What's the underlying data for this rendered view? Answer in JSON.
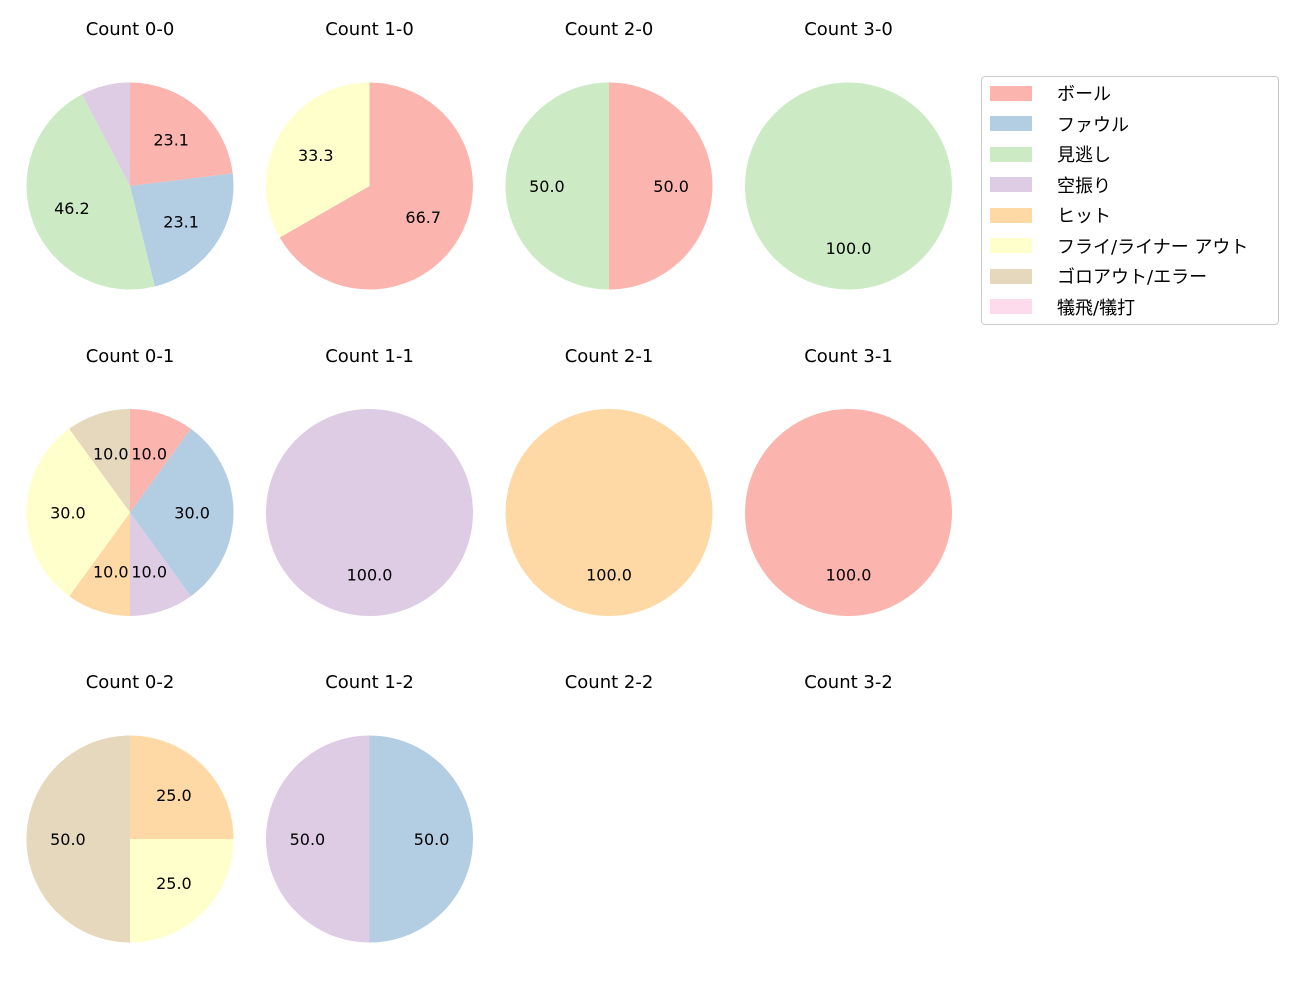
{
  "chart_data": {
    "type": "pie",
    "layout": {
      "rows": 3,
      "cols": 4,
      "start_angle": 90,
      "direction": "clockwise",
      "legend_position": "upper right"
    },
    "categories": [
      "ボール",
      "ファウル",
      "見逃し",
      "空振り",
      "ヒット",
      "フライ/ライナー アウト",
      "ゴロアウト/エラー",
      "犠飛/犠打"
    ],
    "colors": [
      "#fbb4ae",
      "#b3cde3",
      "#ccebc5",
      "#decbe4",
      "#fed9a6",
      "#ffffcc",
      "#e5d8bd",
      "#fddaec"
    ],
    "charts": [
      {
        "title": "Count 0-0",
        "values": [
          23.1,
          23.1,
          46.2,
          7.7,
          0,
          0,
          0,
          0
        ],
        "labels": [
          "23.1",
          "23.1",
          "46.2",
          "",
          "",
          "",
          "",
          ""
        ]
      },
      {
        "title": "Count 1-0",
        "values": [
          66.7,
          0,
          0,
          0,
          0,
          33.3,
          0,
          0
        ],
        "labels": [
          "66.7",
          "",
          "",
          "",
          "",
          "33.3",
          "",
          ""
        ]
      },
      {
        "title": "Count 2-0",
        "values": [
          50.0,
          0,
          50.0,
          0,
          0,
          0,
          0,
          0
        ],
        "labels": [
          "50.0",
          "",
          "50.0",
          "",
          "",
          "",
          "",
          ""
        ]
      },
      {
        "title": "Count 3-0",
        "values": [
          0,
          0,
          100.0,
          0,
          0,
          0,
          0,
          0
        ],
        "labels": [
          "",
          "",
          "100.0",
          "",
          "",
          "",
          "",
          ""
        ]
      },
      {
        "title": "Count 0-1",
        "values": [
          10.0,
          30.0,
          0,
          10.0,
          10.0,
          30.0,
          10.0,
          0
        ],
        "labels": [
          "10.0",
          "30.0",
          "",
          "10.0",
          "10.0",
          "30.0",
          "10.0",
          ""
        ]
      },
      {
        "title": "Count 1-1",
        "values": [
          0,
          0,
          0,
          100.0,
          0,
          0,
          0,
          0
        ],
        "labels": [
          "",
          "",
          "",
          "100.0",
          "",
          "",
          "",
          ""
        ]
      },
      {
        "title": "Count 2-1",
        "values": [
          0,
          0,
          0,
          0,
          100.0,
          0,
          0,
          0
        ],
        "labels": [
          "",
          "",
          "",
          "",
          "100.0",
          "",
          "",
          ""
        ]
      },
      {
        "title": "Count 3-1",
        "values": [
          100.0,
          0,
          0,
          0,
          0,
          0,
          0,
          0
        ],
        "labels": [
          "100.0",
          "",
          "",
          "",
          "",
          "",
          "",
          ""
        ]
      },
      {
        "title": "Count 0-2",
        "values": [
          0,
          0,
          0,
          0,
          25.0,
          25.0,
          50.0,
          0
        ],
        "labels": [
          "",
          "",
          "",
          "",
          "25.0",
          "25.0",
          "50.0",
          ""
        ]
      },
      {
        "title": "Count 1-2",
        "values": [
          0,
          50.0,
          0,
          50.0,
          0,
          0,
          0,
          0
        ],
        "labels": [
          "",
          "50.0",
          "",
          "50.0",
          "",
          "",
          "",
          ""
        ]
      },
      {
        "title": "Count 2-2",
        "values": [],
        "labels": []
      },
      {
        "title": "Count 3-2",
        "values": [],
        "labels": []
      }
    ]
  },
  "legend": {
    "items": [
      {
        "label": "ボール",
        "color": "#fbb4ae"
      },
      {
        "label": "ファウル",
        "color": "#b3cde3"
      },
      {
        "label": "見逃し",
        "color": "#ccebc5"
      },
      {
        "label": "空振り",
        "color": "#decbe4"
      },
      {
        "label": "ヒット",
        "color": "#fed9a6"
      },
      {
        "label": "フライ/ライナー アウト",
        "color": "#ffffcc"
      },
      {
        "label": "ゴロアウト/エラー",
        "color": "#e5d8bd"
      },
      {
        "label": "犠飛/犠打",
        "color": "#fddaec"
      }
    ]
  }
}
